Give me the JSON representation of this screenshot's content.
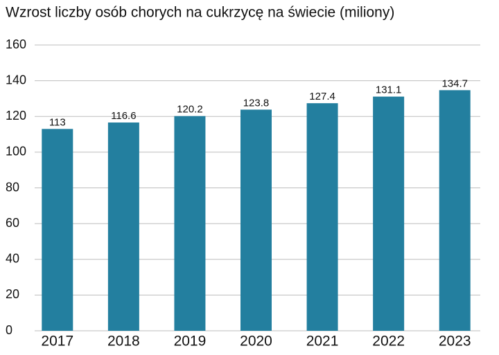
{
  "chart_data": {
    "type": "bar",
    "title": "Wzrost liczby osób chorych na cukrzycę na świecie (miliony)",
    "categories": [
      "2017",
      "2018",
      "2019",
      "2020",
      "2021",
      "2022",
      "2023"
    ],
    "values": [
      113,
      116.6,
      120.2,
      123.8,
      127.4,
      131.1,
      134.7
    ],
    "color": "#237f9f",
    "ylim": [
      0,
      160
    ],
    "yticks": [
      0,
      20,
      40,
      60,
      80,
      100,
      120,
      140,
      160
    ],
    "grid": true
  }
}
